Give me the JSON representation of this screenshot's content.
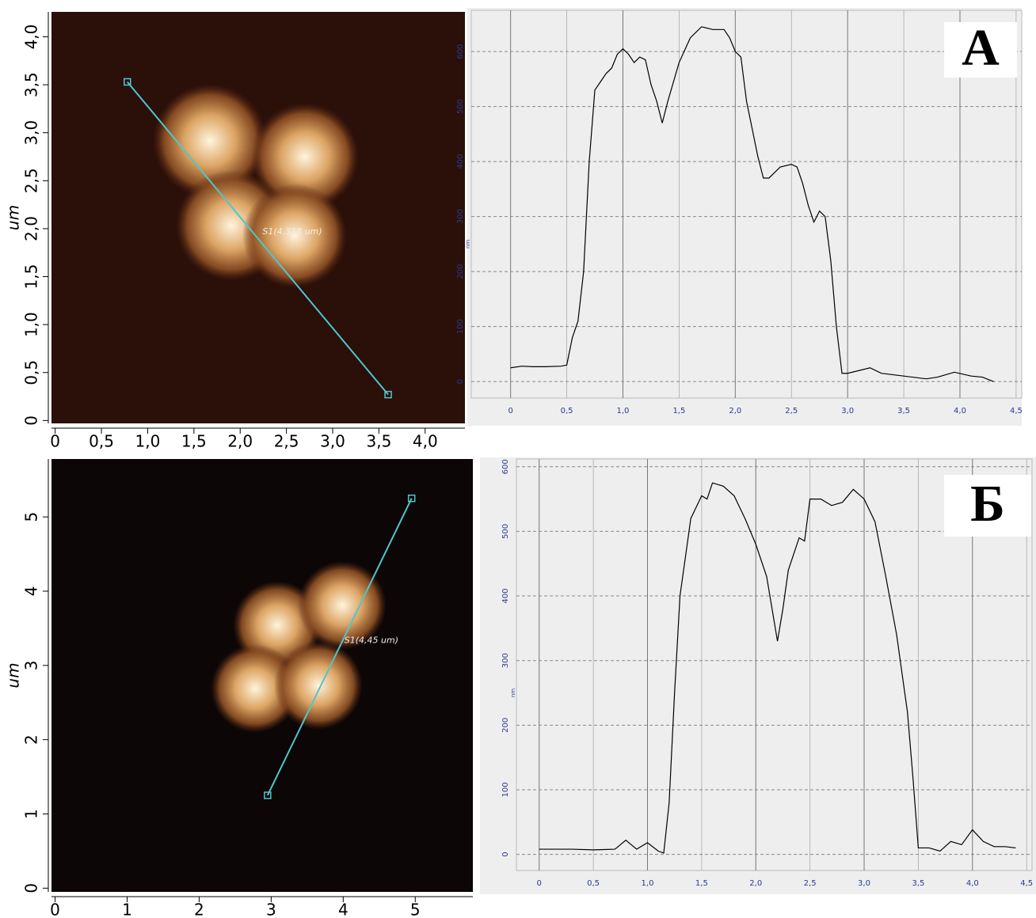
{
  "chart_data": [
    {
      "type": "image",
      "ylabel": "um",
      "color": "#2b0f09",
      "xlim": [
        -0.04,
        4.43
      ],
      "ylim": [
        -0.03,
        4.26
      ],
      "xticks": [
        0,
        {
          "value": 0.5,
          "label": "0,5"
        },
        {
          "value": 1,
          "label": "1,0"
        },
        {
          "value": 1.5,
          "label": "1,5"
        },
        {
          "value": 2,
          "label": "2,0"
        },
        {
          "value": 2.5,
          "label": "2,5"
        },
        {
          "value": 3,
          "label": "3,0"
        },
        {
          "value": 3.5,
          "label": "3,5"
        },
        {
          "value": 4,
          "label": "4,0"
        }
      ],
      "yticks": [
        0,
        {
          "value": 0.5,
          "label": "0,5"
        },
        {
          "value": 1,
          "label": "1,0"
        },
        {
          "value": 1.5,
          "label": "1,5"
        },
        {
          "value": 2,
          "label": "2,0"
        },
        {
          "value": 2.5,
          "label": "2,5"
        },
        {
          "value": 3,
          "label": "3,0"
        },
        {
          "value": 3.5,
          "label": "3,5"
        },
        {
          "value": 4,
          "label": "4,0"
        }
      ],
      "scan_line": {
        "x": [
          0.78,
          3.6
        ],
        "y": [
          3.53,
          0.27
        ],
        "label": "S1(4,318 um)",
        "color": "#4fc6cc"
      }
    },
    {
      "type": "line",
      "panel_label": "А",
      "ylabel": "nm",
      "color": "#000000",
      "xlim": [
        -0.35,
        4.55
      ],
      "ylim": [
        -30,
        675
      ],
      "xticks": [
        0,
        {
          "value": 0.5,
          "label": "0,5"
        },
        {
          "value": 1,
          "label": "1,0"
        },
        {
          "value": 1.5,
          "label": "1,5"
        },
        {
          "value": 2,
          "label": "2,0"
        },
        {
          "value": 2.5,
          "label": "2,5"
        },
        {
          "value": 3,
          "label": "3,0"
        },
        {
          "value": 3.5,
          "label": "3,5"
        },
        {
          "value": 4,
          "label": "4,0"
        },
        {
          "value": 4.5,
          "label": "4,5"
        }
      ],
      "yticks": [
        0,
        100,
        200,
        300,
        400,
        500,
        600
      ],
      "x": [
        0,
        0.1,
        0.2,
        0.3,
        0.45,
        0.5,
        0.55,
        0.6,
        0.65,
        0.7,
        0.75,
        0.8,
        0.85,
        0.9,
        0.95,
        1.0,
        1.05,
        1.1,
        1.15,
        1.2,
        1.25,
        1.3,
        1.35,
        1.4,
        1.5,
        1.6,
        1.7,
        1.8,
        1.9,
        1.95,
        2.0,
        2.05,
        2.1,
        2.2,
        2.25,
        2.3,
        2.4,
        2.5,
        2.55,
        2.6,
        2.65,
        2.7,
        2.75,
        2.8,
        2.85,
        2.9,
        2.95,
        3.0,
        3.1,
        3.2,
        3.3,
        3.5,
        3.7,
        3.8,
        3.95,
        4.1,
        4.2,
        4.3
      ],
      "values": [
        25,
        28,
        27,
        27,
        28,
        30,
        80,
        110,
        200,
        400,
        530,
        545,
        560,
        570,
        595,
        605,
        595,
        580,
        590,
        585,
        540,
        510,
        470,
        510,
        580,
        625,
        645,
        640,
        640,
        625,
        600,
        590,
        510,
        410,
        370,
        370,
        390,
        395,
        390,
        360,
        320,
        290,
        310,
        300,
        220,
        100,
        15,
        15,
        20,
        25,
        15,
        10,
        5,
        8,
        17,
        10,
        8,
        0
      ]
    },
    {
      "type": "image",
      "ylabel": "um",
      "color": "#0c0606",
      "xlim": [
        -0.05,
        5.8
      ],
      "ylim": [
        -0.05,
        5.78
      ],
      "xticks": [
        0,
        1,
        2,
        3,
        4,
        5
      ],
      "yticks": [
        0,
        1,
        2,
        3,
        4,
        5
      ],
      "scan_line": {
        "x": [
          2.95,
          4.95
        ],
        "y": [
          1.25,
          5.25
        ],
        "label": "S1(4,45 um)",
        "color": "#4fc6cc"
      }
    },
    {
      "type": "line",
      "panel_label": "Б",
      "ylabel": "nm",
      "color": "#000000",
      "xlim": [
        -0.21,
        4.55
      ],
      "ylim": [
        -25,
        612
      ],
      "xticks": [
        0,
        {
          "value": 0.5,
          "label": "0,5"
        },
        {
          "value": 1,
          "label": "1,0"
        },
        {
          "value": 1.5,
          "label": "1,5"
        },
        {
          "value": 2,
          "label": "2,0"
        },
        {
          "value": 2.5,
          "label": "2,5"
        },
        {
          "value": 3,
          "label": "3,0"
        },
        {
          "value": 3.5,
          "label": "3,5"
        },
        {
          "value": 4,
          "label": "4,0"
        },
        {
          "value": 4.5,
          "label": "4,5"
        }
      ],
      "yticks": [
        0,
        100,
        200,
        300,
        400,
        500,
        600
      ],
      "x": [
        0,
        0.3,
        0.5,
        0.7,
        0.8,
        0.9,
        1.0,
        1.1,
        1.15,
        1.2,
        1.25,
        1.3,
        1.4,
        1.5,
        1.55,
        1.6,
        1.7,
        1.8,
        1.9,
        2.0,
        2.1,
        2.2,
        2.25,
        2.3,
        2.4,
        2.45,
        2.5,
        2.6,
        2.7,
        2.8,
        2.9,
        3.0,
        3.1,
        3.2,
        3.3,
        3.4,
        3.45,
        3.5,
        3.6,
        3.7,
        3.8,
        3.9,
        4.0,
        4.1,
        4.2,
        4.3,
        4.4
      ],
      "values": [
        8,
        8,
        7,
        8,
        22,
        8,
        18,
        5,
        2,
        80,
        250,
        400,
        520,
        555,
        550,
        575,
        570,
        555,
        520,
        480,
        430,
        330,
        380,
        440,
        490,
        485,
        550,
        550,
        540,
        545,
        565,
        550,
        515,
        430,
        340,
        220,
        120,
        10,
        10,
        5,
        20,
        15,
        38,
        20,
        12,
        12,
        10
      ]
    }
  ]
}
